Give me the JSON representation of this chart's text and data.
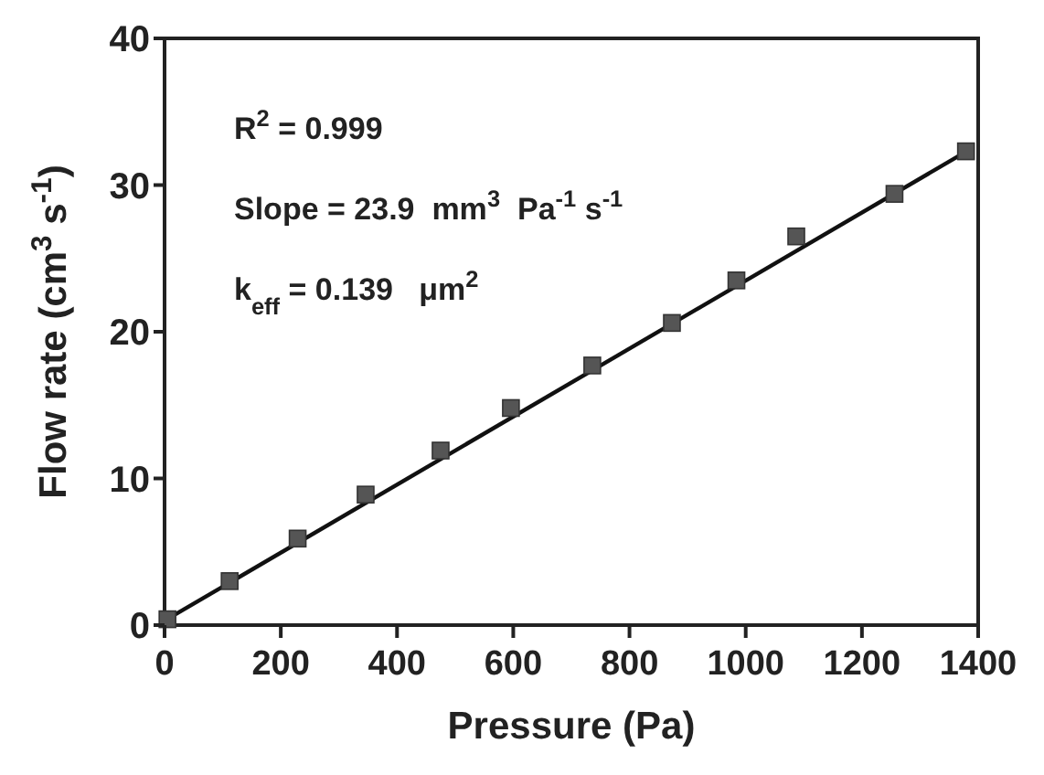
{
  "chart_data": {
    "type": "scatter",
    "xlabel": "Pressure (Pa)",
    "ylabel": "Flow rate (cm$^{3}$ s$^{-1}$)",
    "xlim": [
      0,
      1400
    ],
    "xticks": [
      0,
      200,
      400,
      600,
      800,
      1000,
      1200,
      1400
    ],
    "ylim": [
      0,
      40
    ],
    "yticks": [
      0,
      10,
      20,
      30,
      40
    ],
    "grid": false,
    "annotations": [
      "R$^{2}$ = 0.999",
      "Slope = 23.9  mm$^{3}$  Pa$^{-1}$ s$^{-1}$",
      "k$_{eff}$ = 0.139   μm$^{2}$"
    ],
    "series": [
      {
        "color": "#555555",
        "marker": "square",
        "x": [
          5,
          112,
          229,
          346,
          475,
          596,
          736,
          873,
          984,
          1087,
          1256,
          1379
        ],
        "values": [
          0.4,
          3.0,
          5.9,
          8.9,
          11.9,
          14.8,
          17.7,
          20.6,
          23.5,
          26.5,
          29.4,
          32.3
        ]
      },
      {
        "type": "line",
        "color": "#111111",
        "marker": "none",
        "line_style": "solid",
        "x": [
          0,
          1380
        ],
        "values": [
          0.3,
          32.3
        ]
      }
    ]
  }
}
